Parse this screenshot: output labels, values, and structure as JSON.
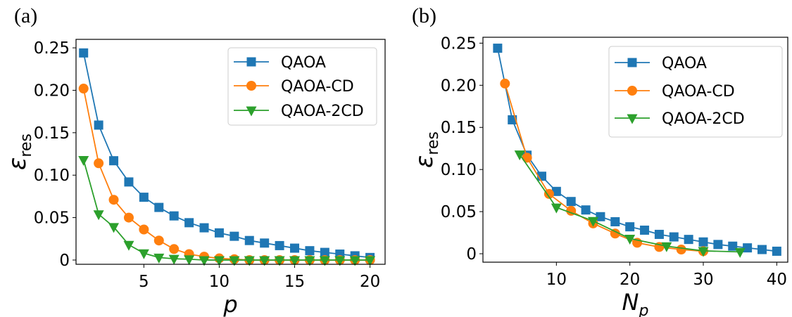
{
  "colors": {
    "QAOA": "#1f77b4",
    "QAOA-CD": "#ff7f0e",
    "QAOA-2CD": "#2ca02c"
  },
  "chart_data": [
    {
      "type": "line",
      "panel_label": "(a)",
      "xlabel": "p",
      "ylabel": "ε_res",
      "ylabel_main": "ε",
      "ylabel_sub": "res",
      "xlim": [
        0.5,
        21
      ],
      "ylim": [
        -0.005,
        0.26
      ],
      "xticks": [
        5,
        10,
        15,
        20
      ],
      "xtick_labels": [
        "5",
        "10",
        "15",
        "20"
      ],
      "yticks": [
        0,
        0.05,
        0.1,
        0.15,
        0.2,
        0.25
      ],
      "ytick_labels": [
        "0",
        "0.05",
        "0.10",
        "0.15",
        "0.20",
        "0.25"
      ],
      "legend_position": "upper-right",
      "grid": false,
      "series": [
        {
          "name": "QAOA",
          "marker": "square",
          "x": [
            1,
            2,
            3,
            4,
            5,
            6,
            7,
            8,
            9,
            10,
            11,
            12,
            13,
            14,
            15,
            16,
            17,
            18,
            19,
            20
          ],
          "y": [
            0.244,
            0.159,
            0.117,
            0.092,
            0.074,
            0.062,
            0.052,
            0.044,
            0.038,
            0.032,
            0.028,
            0.023,
            0.02,
            0.017,
            0.014,
            0.011,
            0.009,
            0.007,
            0.005,
            0.003
          ]
        },
        {
          "name": "QAOA-CD",
          "marker": "circle",
          "x": [
            1,
            2,
            3,
            4,
            5,
            6,
            7,
            8,
            9,
            10,
            11,
            12,
            13,
            14,
            15,
            16,
            17,
            18,
            19,
            20
          ],
          "y": [
            0.202,
            0.114,
            0.071,
            0.05,
            0.036,
            0.023,
            0.013,
            0.007,
            0.004,
            0.002,
            0.001,
            0,
            0,
            0,
            0,
            0,
            0,
            0,
            0,
            0
          ]
        },
        {
          "name": "QAOA-2CD",
          "marker": "triangle-down",
          "x": [
            1,
            2,
            3,
            4,
            5,
            6,
            7,
            8,
            9,
            10,
            11,
            12,
            13,
            14,
            15,
            16,
            17,
            18,
            19,
            20
          ],
          "y": [
            0.118,
            0.054,
            0.039,
            0.018,
            0.008,
            0.003,
            0.0015,
            0.001,
            0,
            0,
            0,
            0,
            0,
            0,
            0,
            0,
            0,
            0,
            0,
            0
          ]
        }
      ]
    },
    {
      "type": "line",
      "panel_label": "(b)",
      "xlabel": "N_p",
      "xlabel_main": "N",
      "xlabel_sub": "p",
      "ylabel": "ε_res",
      "ylabel_main": "ε",
      "ylabel_sub": "res",
      "xlim": [
        0,
        41.5
      ],
      "ylim": [
        -0.01,
        0.257
      ],
      "xticks": [
        10,
        20,
        30,
        40
      ],
      "xtick_labels": [
        "10",
        "20",
        "30",
        "40"
      ],
      "yticks": [
        0,
        0.05,
        0.1,
        0.15,
        0.2,
        0.25
      ],
      "ytick_labels": [
        "0",
        "0.05",
        "0.10",
        "0.15",
        "0.20",
        "0.25"
      ],
      "legend_position": "upper-right",
      "grid": false,
      "series": [
        {
          "name": "QAOA",
          "marker": "square",
          "x": [
            2,
            4,
            6,
            8,
            10,
            12,
            14,
            16,
            18,
            20,
            22,
            24,
            26,
            28,
            30,
            32,
            34,
            36,
            38,
            40
          ],
          "y": [
            0.244,
            0.159,
            0.117,
            0.092,
            0.074,
            0.062,
            0.052,
            0.044,
            0.038,
            0.032,
            0.028,
            0.023,
            0.02,
            0.017,
            0.014,
            0.011,
            0.009,
            0.007,
            0.005,
            0.003
          ]
        },
        {
          "name": "QAOA-CD",
          "marker": "circle",
          "x": [
            3,
            6,
            9,
            12,
            15,
            18,
            21,
            24,
            27,
            30
          ],
          "y": [
            0.202,
            0.114,
            0.071,
            0.051,
            0.036,
            0.024,
            0.013,
            0.008,
            0.005,
            0.003
          ]
        },
        {
          "name": "QAOA-2CD",
          "marker": "triangle-down",
          "x": [
            5,
            10,
            15,
            20,
            25,
            30,
            35
          ],
          "y": [
            0.118,
            0.055,
            0.039,
            0.018,
            0.009,
            0.0034,
            0.0022
          ]
        }
      ]
    }
  ]
}
